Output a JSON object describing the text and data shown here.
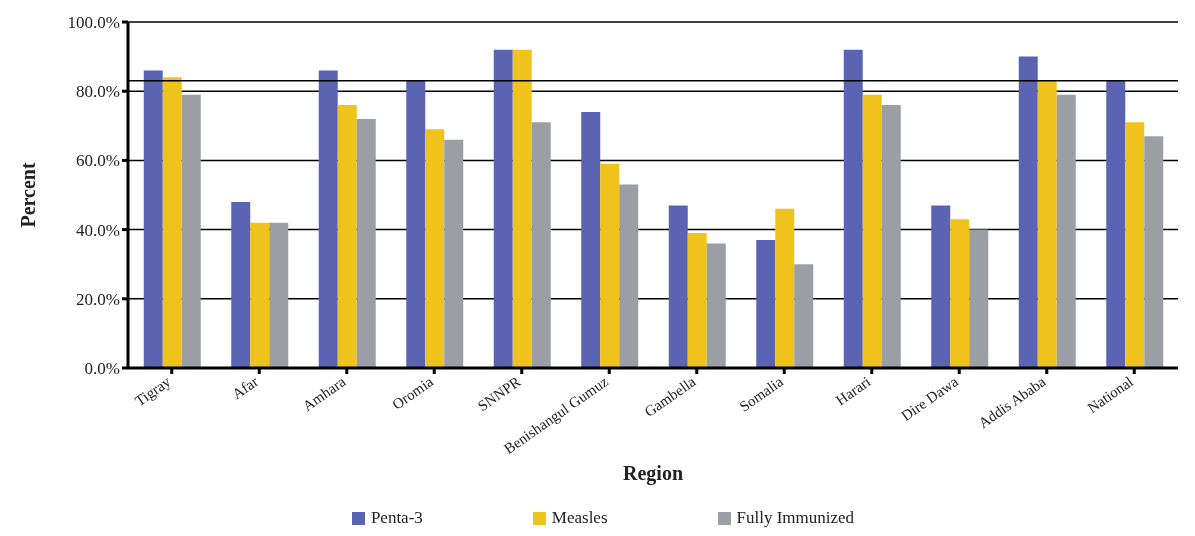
{
  "chart_data": {
    "type": "bar",
    "xlabel": "Region",
    "ylabel": "Percent",
    "categories": [
      "Tigray",
      "Afar",
      "Amhara",
      "Oromia",
      "SNNPR",
      "Benishangul Gumuz",
      "Gambella",
      "Somalia",
      "Harari",
      "Dire Dawa",
      "Addis Ababa",
      "National"
    ],
    "series": [
      {
        "name": "Penta-3",
        "color": "#5a64b2",
        "values": [
          86,
          48,
          86,
          83,
          92,
          74,
          47,
          37,
          92,
          47,
          90,
          83
        ]
      },
      {
        "name": "Measles",
        "color": "#f0c31c",
        "values": [
          84,
          42,
          76,
          69,
          92,
          59,
          39,
          46,
          79,
          43,
          83,
          71
        ]
      },
      {
        "name": "Fully Immunized",
        "color": "#9c9ea6",
        "values": [
          79,
          42,
          72,
          66,
          71,
          53,
          36,
          30,
          76,
          40,
          79,
          67
        ]
      }
    ],
    "ylim": [
      0,
      100
    ],
    "yticks": [
      {
        "value": 0,
        "label": "0.0%"
      },
      {
        "value": 20,
        "label": "20.0%"
      },
      {
        "value": 40,
        "label": "40.0%"
      },
      {
        "value": 60,
        "label": "60.0%"
      },
      {
        "value": 80,
        "label": "80.0%"
      },
      {
        "value": 100,
        "label": "100.0%"
      }
    ],
    "ref_lines": [
      {
        "axis": "y",
        "value": 83,
        "color": "#000000"
      }
    ],
    "grid": "y",
    "legend": "bottom"
  }
}
